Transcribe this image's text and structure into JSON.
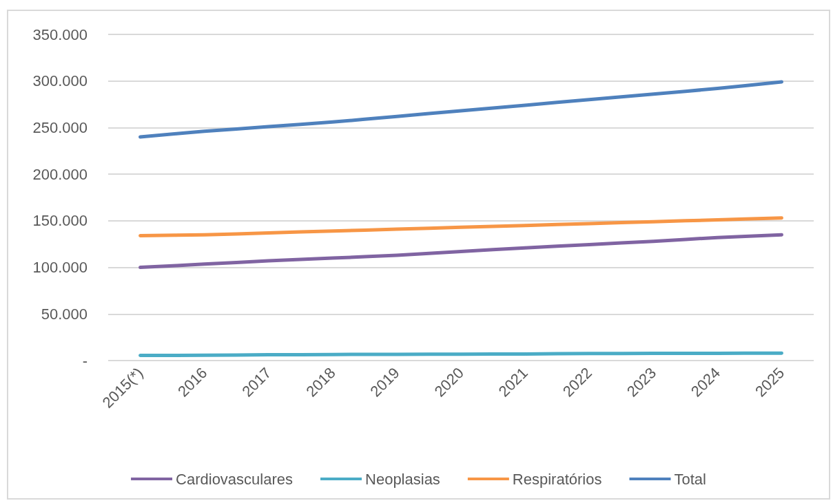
{
  "chart_data": {
    "type": "line",
    "categories": [
      "2015(*)",
      "2016",
      "2017",
      "2018",
      "2019",
      "2020",
      "2021",
      "2022",
      "2023",
      "2024",
      "2025"
    ],
    "series": [
      {
        "name": "Cardiovasculares",
        "color": "#8064a2",
        "values": [
          100000,
          103500,
          107000,
          110000,
          113000,
          117000,
          121000,
          124500,
          128000,
          132000,
          135000
        ]
      },
      {
        "name": "Neoplasias",
        "color": "#4bacc6",
        "values": [
          5500,
          5700,
          6200,
          6500,
          6700,
          6900,
          7100,
          7500,
          7700,
          7800,
          8000
        ]
      },
      {
        "name": "Respiratórios",
        "color": "#f79646",
        "values": [
          134000,
          135000,
          137000,
          139000,
          141000,
          143000,
          145000,
          147000,
          149000,
          151000,
          153000
        ]
      },
      {
        "name": "Total",
        "color": "#4f81bd",
        "values": [
          240000,
          246000,
          251000,
          256000,
          262000,
          268000,
          274000,
          280000,
          286000,
          292000,
          299000
        ]
      }
    ],
    "ylim": [
      0,
      350000
    ],
    "yticks": [
      {
        "value": 0,
        "label": "-"
      },
      {
        "value": 50000,
        "label": "50.000"
      },
      {
        "value": 100000,
        "label": "100.000"
      },
      {
        "value": 150000,
        "label": "150.000"
      },
      {
        "value": 200000,
        "label": "200.000"
      },
      {
        "value": 250000,
        "label": "250.000"
      },
      {
        "value": 300000,
        "label": "300.000"
      },
      {
        "value": 350000,
        "label": "350.000"
      }
    ],
    "grid": "y",
    "legend": "bottom",
    "marker": "none",
    "line_style": "solid"
  }
}
